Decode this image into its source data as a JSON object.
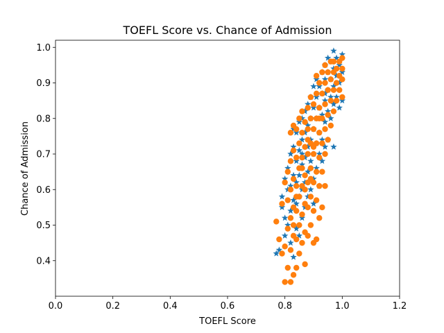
{
  "chart_data": {
    "type": "scatter",
    "title": "TOEFL Score vs. Chance of Admission",
    "xlabel": "TOEFL Score",
    "ylabel": "Chance of Admission",
    "xlim": [
      0.0,
      1.2
    ],
    "ylim": [
      0.3,
      1.02
    ],
    "xticks": [
      0.0,
      0.2,
      0.4,
      0.6,
      0.8,
      1.0,
      1.2
    ],
    "xtick_labels": [
      "0.0",
      "0.2",
      "0.4",
      "0.6",
      "0.8",
      "1.0",
      "1.2"
    ],
    "yticks": [
      0.4,
      0.5,
      0.6,
      0.7,
      0.8,
      0.9,
      1.0
    ],
    "ytick_labels": [
      "0.4",
      "0.5",
      "0.6",
      "0.7",
      "0.8",
      "0.9",
      "1.0"
    ],
    "grid": false,
    "legend": "none",
    "series": [
      {
        "marker": "star",
        "color": "#1f77b4",
        "points": [
          [
            0.77,
            0.42
          ],
          [
            0.78,
            0.43
          ],
          [
            0.79,
            0.55
          ],
          [
            0.79,
            0.58
          ],
          [
            0.8,
            0.52
          ],
          [
            0.8,
            0.47
          ],
          [
            0.8,
            0.63
          ],
          [
            0.81,
            0.5
          ],
          [
            0.81,
            0.6
          ],
          [
            0.81,
            0.66
          ],
          [
            0.82,
            0.45
          ],
          [
            0.82,
            0.54
          ],
          [
            0.82,
            0.61
          ],
          [
            0.82,
            0.7
          ],
          [
            0.83,
            0.41
          ],
          [
            0.83,
            0.57
          ],
          [
            0.83,
            0.64
          ],
          [
            0.83,
            0.72
          ],
          [
            0.83,
            0.77
          ],
          [
            0.84,
            0.49
          ],
          [
            0.84,
            0.56
          ],
          [
            0.84,
            0.62
          ],
          [
            0.84,
            0.68
          ],
          [
            0.84,
            0.76
          ],
          [
            0.85,
            0.47
          ],
          [
            0.85,
            0.58
          ],
          [
            0.85,
            0.64
          ],
          [
            0.85,
            0.71
          ],
          [
            0.85,
            0.79
          ],
          [
            0.86,
            0.52
          ],
          [
            0.86,
            0.6
          ],
          [
            0.86,
            0.67
          ],
          [
            0.86,
            0.74
          ],
          [
            0.86,
            0.8
          ],
          [
            0.87,
            0.55
          ],
          [
            0.87,
            0.62
          ],
          [
            0.87,
            0.69
          ],
          [
            0.87,
            0.76
          ],
          [
            0.87,
            0.82
          ],
          [
            0.88,
            0.58
          ],
          [
            0.88,
            0.65
          ],
          [
            0.88,
            0.72
          ],
          [
            0.88,
            0.78
          ],
          [
            0.88,
            0.84
          ],
          [
            0.89,
            0.6
          ],
          [
            0.89,
            0.68
          ],
          [
            0.89,
            0.74
          ],
          [
            0.89,
            0.8
          ],
          [
            0.89,
            0.86
          ],
          [
            0.9,
            0.56
          ],
          [
            0.9,
            0.63
          ],
          [
            0.9,
            0.7
          ],
          [
            0.9,
            0.77
          ],
          [
            0.9,
            0.83
          ],
          [
            0.9,
            0.89
          ],
          [
            0.91,
            0.66
          ],
          [
            0.91,
            0.73
          ],
          [
            0.91,
            0.8
          ],
          [
            0.91,
            0.86
          ],
          [
            0.91,
            0.91
          ],
          [
            0.92,
            0.61
          ],
          [
            0.92,
            0.7
          ],
          [
            0.92,
            0.76
          ],
          [
            0.92,
            0.83
          ],
          [
            0.92,
            0.89
          ],
          [
            0.93,
            0.68
          ],
          [
            0.93,
            0.74
          ],
          [
            0.93,
            0.81
          ],
          [
            0.93,
            0.87
          ],
          [
            0.93,
            0.93
          ],
          [
            0.94,
            0.72
          ],
          [
            0.94,
            0.79
          ],
          [
            0.94,
            0.85
          ],
          [
            0.94,
            0.91
          ],
          [
            0.94,
            0.95
          ],
          [
            0.95,
            0.74
          ],
          [
            0.95,
            0.82
          ],
          [
            0.95,
            0.88
          ],
          [
            0.95,
            0.93
          ],
          [
            0.96,
            0.8
          ],
          [
            0.96,
            0.86
          ],
          [
            0.96,
            0.91
          ],
          [
            0.96,
            0.96
          ],
          [
            0.97,
            0.72
          ],
          [
            0.97,
            0.84
          ],
          [
            0.97,
            0.89
          ],
          [
            0.97,
            0.94
          ],
          [
            0.97,
            0.99
          ],
          [
            0.98,
            0.86
          ],
          [
            0.98,
            0.92
          ],
          [
            0.98,
            0.97
          ],
          [
            0.99,
            0.83
          ],
          [
            0.99,
            0.9
          ],
          [
            0.99,
            0.95
          ],
          [
            1.0,
            0.85
          ],
          [
            1.0,
            0.93
          ],
          [
            1.0,
            0.98
          ],
          [
            0.95,
            0.97
          ],
          [
            0.94,
            0.87
          ],
          [
            0.86,
            0.7
          ]
        ]
      },
      {
        "marker": "circle",
        "color": "#ff7f0e",
        "points": [
          [
            0.77,
            0.51
          ],
          [
            0.78,
            0.46
          ],
          [
            0.79,
            0.42
          ],
          [
            0.79,
            0.56
          ],
          [
            0.8,
            0.44
          ],
          [
            0.8,
            0.62
          ],
          [
            0.8,
            0.34
          ],
          [
            0.81,
            0.38
          ],
          [
            0.81,
            0.49
          ],
          [
            0.81,
            0.57
          ],
          [
            0.81,
            0.65
          ],
          [
            0.82,
            0.34
          ],
          [
            0.82,
            0.43
          ],
          [
            0.82,
            0.52
          ],
          [
            0.82,
            0.6
          ],
          [
            0.82,
            0.68
          ],
          [
            0.82,
            0.76
          ],
          [
            0.83,
            0.36
          ],
          [
            0.83,
            0.47
          ],
          [
            0.83,
            0.55
          ],
          [
            0.83,
            0.63
          ],
          [
            0.83,
            0.71
          ],
          [
            0.83,
            0.78
          ],
          [
            0.84,
            0.38
          ],
          [
            0.84,
            0.46
          ],
          [
            0.84,
            0.54
          ],
          [
            0.84,
            0.61
          ],
          [
            0.84,
            0.69
          ],
          [
            0.84,
            0.77
          ],
          [
            0.85,
            0.42
          ],
          [
            0.85,
            0.5
          ],
          [
            0.85,
            0.58
          ],
          [
            0.85,
            0.66
          ],
          [
            0.85,
            0.73
          ],
          [
            0.85,
            0.8
          ],
          [
            0.86,
            0.45
          ],
          [
            0.86,
            0.53
          ],
          [
            0.86,
            0.61
          ],
          [
            0.86,
            0.69
          ],
          [
            0.86,
            0.76
          ],
          [
            0.86,
            0.82
          ],
          [
            0.87,
            0.39
          ],
          [
            0.87,
            0.48
          ],
          [
            0.87,
            0.56
          ],
          [
            0.87,
            0.64
          ],
          [
            0.87,
            0.72
          ],
          [
            0.87,
            0.79
          ],
          [
            0.88,
            0.47
          ],
          [
            0.88,
            0.55
          ],
          [
            0.88,
            0.62
          ],
          [
            0.88,
            0.7
          ],
          [
            0.88,
            0.77
          ],
          [
            0.88,
            0.83
          ],
          [
            0.89,
            0.5
          ],
          [
            0.89,
            0.58
          ],
          [
            0.89,
            0.66
          ],
          [
            0.89,
            0.73
          ],
          [
            0.89,
            0.8
          ],
          [
            0.89,
            0.86
          ],
          [
            0.9,
            0.45
          ],
          [
            0.9,
            0.54
          ],
          [
            0.9,
            0.62
          ],
          [
            0.9,
            0.7
          ],
          [
            0.9,
            0.77
          ],
          [
            0.9,
            0.84
          ],
          [
            0.91,
            0.46
          ],
          [
            0.91,
            0.57
          ],
          [
            0.91,
            0.65
          ],
          [
            0.91,
            0.73
          ],
          [
            0.91,
            0.8
          ],
          [
            0.91,
            0.87
          ],
          [
            0.91,
            0.92
          ],
          [
            0.92,
            0.52
          ],
          [
            0.92,
            0.61
          ],
          [
            0.92,
            0.69
          ],
          [
            0.92,
            0.76
          ],
          [
            0.92,
            0.83
          ],
          [
            0.92,
            0.9
          ],
          [
            0.93,
            0.55
          ],
          [
            0.93,
            0.65
          ],
          [
            0.93,
            0.73
          ],
          [
            0.93,
            0.8
          ],
          [
            0.93,
            0.87
          ],
          [
            0.93,
            0.93
          ],
          [
            0.94,
            0.61
          ],
          [
            0.94,
            0.7
          ],
          [
            0.94,
            0.77
          ],
          [
            0.94,
            0.84
          ],
          [
            0.94,
            0.9
          ],
          [
            0.94,
            0.95
          ],
          [
            0.95,
            0.74
          ],
          [
            0.95,
            0.81
          ],
          [
            0.95,
            0.88
          ],
          [
            0.95,
            0.93
          ],
          [
            0.96,
            0.78
          ],
          [
            0.96,
            0.85
          ],
          [
            0.96,
            0.91
          ],
          [
            0.96,
            0.96
          ],
          [
            0.97,
            0.82
          ],
          [
            0.97,
            0.88
          ],
          [
            0.97,
            0.93
          ],
          [
            0.97,
            0.96
          ],
          [
            0.98,
            0.85
          ],
          [
            0.98,
            0.9
          ],
          [
            0.98,
            0.94
          ],
          [
            0.99,
            0.88
          ],
          [
            0.99,
            0.92
          ],
          [
            0.99,
            0.96
          ],
          [
            1.0,
            0.86
          ],
          [
            1.0,
            0.91
          ],
          [
            1.0,
            0.94
          ],
          [
            1.0,
            0.97
          ],
          [
            0.86,
            0.66
          ],
          [
            0.84,
            0.58
          ],
          [
            0.88,
            0.74
          ],
          [
            0.9,
            0.72
          ],
          [
            0.83,
            0.5
          ],
          [
            0.87,
            0.6
          ],
          [
            0.89,
            0.63
          ],
          [
            0.92,
            0.8
          ]
        ]
      }
    ]
  }
}
